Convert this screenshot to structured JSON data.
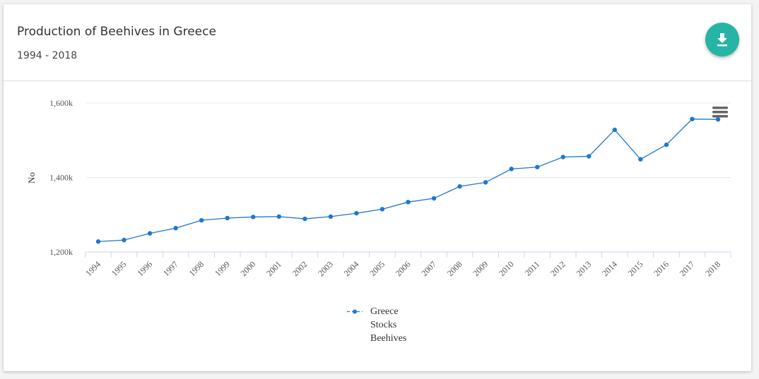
{
  "header": {
    "title": "Production of Beehives in Greece",
    "subtitle": "1994 - 2018",
    "download_icon": "download-icon"
  },
  "menu_icon": "hamburger-menu-icon",
  "legend": {
    "lines": [
      "Greece",
      "Stocks",
      "Beehives"
    ]
  },
  "colors": {
    "series": "#1f77d0",
    "accent": "#26b5a4"
  },
  "chart_data": {
    "type": "line",
    "title": "",
    "xlabel": "",
    "ylabel": "No",
    "ylim": [
      1200,
      1600
    ],
    "yticks": [
      1200,
      1400,
      1600
    ],
    "ytick_labels": [
      "1,200k",
      "1,400k",
      "1,600k"
    ],
    "grid": true,
    "legend_position": "bottom-center",
    "categories": [
      "1994",
      "1995",
      "1996",
      "1997",
      "1998",
      "1999",
      "2000",
      "2001",
      "2002",
      "2003",
      "2004",
      "2005",
      "2006",
      "2007",
      "2008",
      "2009",
      "2010",
      "2011",
      "2012",
      "2013",
      "2014",
      "2015",
      "2016",
      "2017",
      "2018"
    ],
    "series": [
      {
        "name": "Greece Stocks Beehives",
        "values": [
          1228,
          1232,
          1250,
          1264,
          1285,
          1291,
          1294,
          1295,
          1289,
          1295,
          1304,
          1315,
          1334,
          1344,
          1376,
          1387,
          1423,
          1428,
          1455,
          1457,
          1528,
          1449,
          1488,
          1557,
          1556
        ]
      }
    ]
  }
}
